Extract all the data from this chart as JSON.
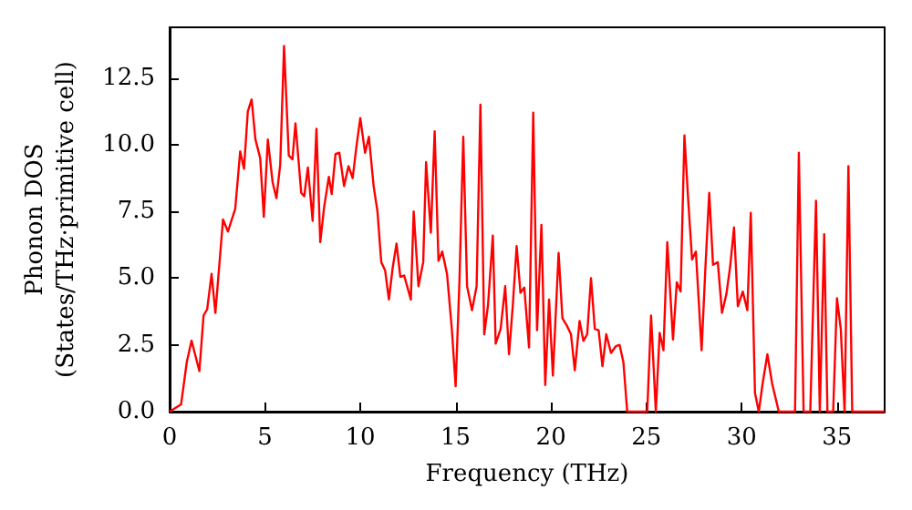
{
  "chart_data": {
    "type": "line",
    "xlabel": "Frequency (THz)",
    "ylabel": "Phonon DOS\n(States/THz·primitive cell)",
    "xlim": [
      0,
      37.5
    ],
    "xticks": [
      0,
      5,
      10,
      15,
      20,
      25,
      30,
      35
    ],
    "ylim": [
      0,
      14.4
    ],
    "yticks": [
      {
        "value": 0,
        "label": "0.0"
      },
      {
        "value": 2.5,
        "label": "2.5"
      },
      {
        "value": 5,
        "label": "5.0"
      },
      {
        "value": 7.5,
        "label": "7.5"
      },
      {
        "value": 10,
        "label": "10.0"
      },
      {
        "value": 12.5,
        "label": "12.5"
      }
    ],
    "grid": false,
    "marker": "none",
    "line_style": "solid",
    "series": [
      {
        "color": "#ff0000",
        "x": [
          0,
          0.6,
          0.9,
          1.15,
          1.56,
          1.78,
          1.97,
          2.2,
          2.4,
          2.8,
          3.06,
          3.44,
          3.7,
          3.9,
          4.1,
          4.3,
          4.5,
          4.75,
          4.94,
          5.15,
          5.4,
          5.6,
          5.8,
          6.0,
          6.25,
          6.44,
          6.6,
          6.9,
          7.06,
          7.25,
          7.5,
          7.7,
          7.9,
          8.1,
          8.35,
          8.5,
          8.7,
          8.9,
          9.15,
          9.38,
          9.6,
          9.8,
          10.0,
          10.25,
          10.45,
          10.7,
          10.9,
          11.1,
          11.3,
          11.5,
          11.7,
          11.9,
          12.1,
          12.3,
          12.65,
          12.8,
          13.05,
          13.3,
          13.45,
          13.7,
          13.9,
          14.1,
          14.3,
          14.55,
          14.8,
          15.0,
          15.2,
          15.4,
          15.6,
          15.86,
          16.1,
          16.3,
          16.5,
          16.7,
          16.95,
          17.1,
          17.36,
          17.6,
          17.8,
          18.0,
          18.2,
          18.4,
          18.6,
          18.85,
          19.07,
          19.27,
          19.5,
          19.7,
          19.9,
          20.1,
          20.4,
          20.6,
          20.85,
          21.05,
          21.25,
          21.5,
          21.7,
          21.9,
          22.1,
          22.3,
          22.5,
          22.7,
          22.9,
          23.15,
          23.4,
          23.6,
          23.8,
          24.0,
          25.05,
          25.25,
          25.5,
          25.7,
          25.9,
          26.1,
          26.4,
          26.6,
          26.8,
          27.0,
          27.2,
          27.4,
          27.6,
          27.9,
          28.1,
          28.3,
          28.5,
          28.75,
          28.97,
          29.2,
          29.4,
          29.6,
          29.8,
          30.06,
          30.3,
          30.48,
          30.7,
          30.9,
          31.1,
          31.35,
          31.6,
          31.95,
          32.8,
          33.0,
          33.25,
          33.6,
          33.9,
          34.1,
          34.33,
          34.5,
          34.8,
          35.0,
          35.2,
          35.4,
          35.6,
          35.8,
          37.5
        ],
        "values": [
          0,
          0.27,
          1.86,
          2.66,
          1.52,
          3.6,
          3.84,
          5.16,
          3.7,
          7.2,
          6.75,
          7.6,
          9.75,
          9.1,
          11.25,
          11.7,
          10.2,
          9.5,
          7.3,
          10.2,
          8.6,
          8.0,
          9.25,
          13.7,
          9.6,
          9.45,
          10.8,
          8.2,
          8.07,
          9.15,
          7.15,
          10.6,
          6.35,
          7.65,
          8.8,
          8.15,
          9.65,
          9.7,
          8.45,
          9.2,
          8.75,
          9.95,
          11.0,
          9.7,
          10.3,
          8.45,
          7.5,
          5.6,
          5.3,
          4.2,
          5.4,
          6.3,
          5.05,
          5.1,
          4.2,
          7.5,
          4.7,
          5.6,
          9.35,
          6.7,
          10.5,
          5.65,
          6.0,
          5.15,
          3.1,
          0.95,
          4.9,
          10.3,
          4.7,
          3.8,
          4.7,
          11.5,
          2.9,
          4.0,
          6.6,
          2.55,
          3.1,
          4.7,
          2.15,
          4.0,
          6.2,
          4.45,
          4.65,
          2.4,
          11.2,
          3.05,
          7.0,
          1.0,
          4.2,
          1.35,
          5.95,
          3.5,
          3.2,
          2.9,
          1.55,
          3.4,
          2.65,
          2.9,
          5.0,
          3.1,
          3.05,
          1.7,
          2.9,
          2.2,
          2.45,
          2.5,
          1.85,
          0,
          0,
          3.6,
          0,
          2.95,
          2.3,
          6.35,
          2.7,
          4.85,
          4.5,
          10.35,
          7.9,
          5.7,
          6.0,
          2.3,
          5.4,
          8.2,
          5.5,
          5.6,
          3.7,
          4.4,
          5.45,
          6.9,
          3.95,
          4.5,
          3.8,
          7.45,
          0.7,
          0,
          1.05,
          2.15,
          1.05,
          0,
          0,
          9.7,
          0,
          0,
          7.9,
          0,
          6.65,
          0,
          0,
          4.25,
          3.1,
          0,
          9.2,
          0,
          0
        ]
      }
    ]
  }
}
